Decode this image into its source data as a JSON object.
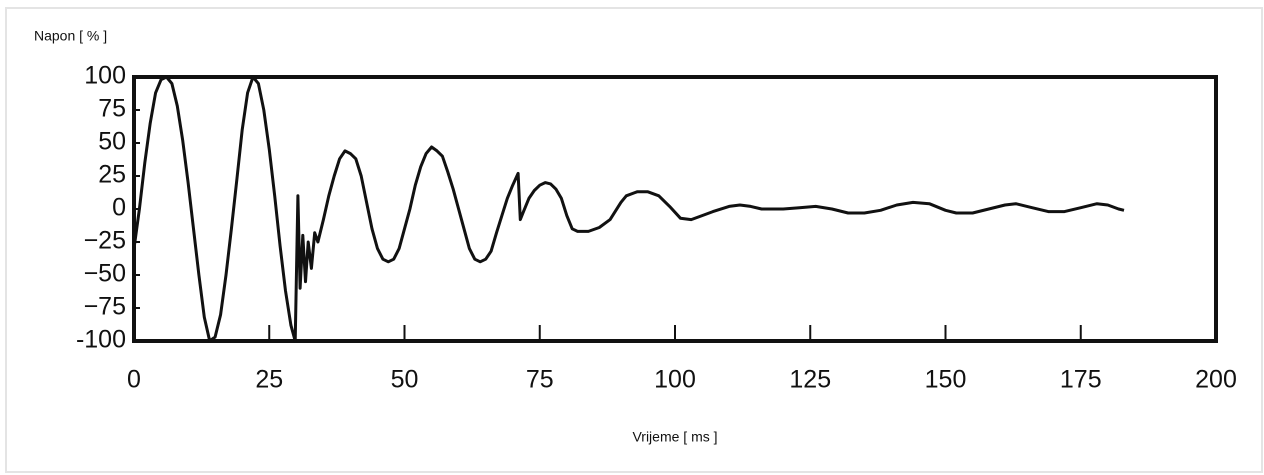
{
  "chart_data": {
    "type": "line",
    "y_label": "Napon [ % ]",
    "x_label": "Vrijeme [ ms ]",
    "x": [
      0,
      1,
      2,
      3,
      4,
      5,
      6,
      7,
      8,
      9,
      10,
      11,
      12,
      13,
      14,
      15,
      16,
      17,
      18,
      19,
      20,
      21,
      22,
      23,
      24,
      25,
      26,
      27,
      28,
      29,
      29.8,
      30.3,
      30.7,
      31.2,
      31.7,
      32.2,
      32.8,
      33.4,
      34,
      35,
      36,
      37,
      38,
      39,
      40,
      41,
      42,
      43,
      44,
      45,
      46,
      47,
      48,
      49,
      50,
      51,
      52,
      53,
      54,
      55,
      56,
      57,
      58,
      59,
      60,
      61,
      62,
      63,
      64,
      65,
      66,
      67,
      68,
      69,
      70,
      71,
      71.4,
      72,
      73,
      74,
      75,
      76,
      77,
      78,
      79,
      80,
      81,
      82,
      84,
      86,
      88,
      90,
      91,
      93,
      95,
      97,
      99,
      101,
      103,
      105,
      107,
      110,
      112,
      114,
      116,
      120,
      123,
      126,
      129,
      132,
      135,
      138,
      141,
      144,
      147,
      150,
      152,
      155,
      158,
      161,
      163,
      166,
      169,
      172,
      175,
      178,
      180,
      182,
      183
    ],
    "series": [
      {
        "color": "#111111",
        "values": [
          -30,
          0,
          35,
          65,
          88,
          98,
          100,
          95,
          78,
          52,
          20,
          -15,
          -50,
          -82,
          -100,
          -97,
          -80,
          -50,
          -15,
          22,
          60,
          88,
          100,
          95,
          75,
          45,
          10,
          -28,
          -62,
          -88,
          -100,
          10,
          -60,
          -20,
          -55,
          -25,
          -45,
          -18,
          -25,
          -8,
          10,
          25,
          38,
          44,
          42,
          38,
          25,
          5,
          -15,
          -30,
          -38,
          -40,
          -38,
          -30,
          -15,
          0,
          18,
          32,
          42,
          47,
          44,
          40,
          28,
          15,
          0,
          -15,
          -30,
          -38,
          -40,
          -38,
          -32,
          -18,
          -5,
          8,
          18,
          27,
          -8,
          -2,
          8,
          14,
          18,
          20,
          19,
          15,
          8,
          -5,
          -15,
          -17,
          -17,
          -14,
          -8,
          5,
          10,
          13,
          13,
          10,
          2,
          -7,
          -8,
          -5,
          -2,
          2,
          3,
          2,
          0,
          0,
          1,
          2,
          0,
          -3,
          -3,
          -1,
          3,
          5,
          4,
          -1,
          -3,
          -3,
          0,
          3,
          4,
          1,
          -2,
          -2,
          1,
          4,
          3,
          0,
          -1
        ]
      }
    ],
    "xlim": [
      0,
      200
    ],
    "ylim": [
      -100,
      100
    ],
    "xticks": [
      0,
      25,
      50,
      75,
      100,
      125,
      150,
      175,
      200
    ],
    "yticks": [
      100,
      75,
      50,
      25,
      0,
      {
        "value": -25,
        "label": "−25"
      },
      {
        "value": -50,
        "label": "−50"
      },
      {
        "value": -75,
        "label": "−75"
      },
      {
        "value": -100,
        "label": "-100"
      }
    ]
  }
}
